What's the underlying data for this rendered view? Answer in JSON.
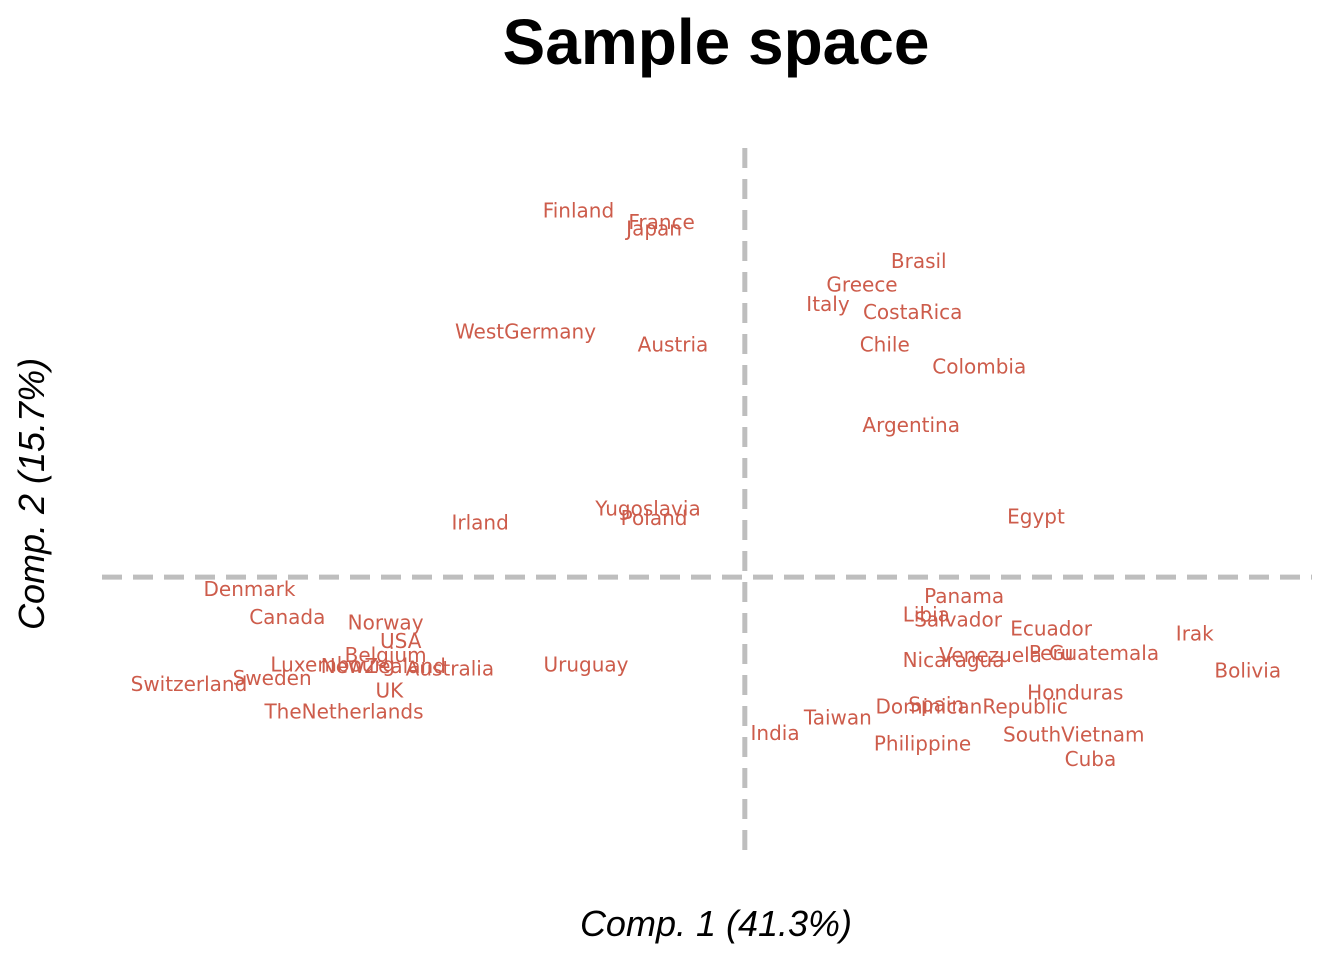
{
  "chart_data": {
    "type": "scatter",
    "title": "Sample space",
    "xlabel": "Comp. 1 (41.3%)",
    "ylabel": "Comp. 2 (15.7%)",
    "xlim": [
      -0.85,
      0.75
    ],
    "ylim": [
      -0.36,
      0.55
    ],
    "grid": false,
    "reference_lines": {
      "x": 0,
      "y": 0
    },
    "label_color": "#CD5C4B",
    "points": [
      {
        "label": "Finland",
        "x": -0.22,
        "y": 0.47
      },
      {
        "label": "France",
        "x": -0.11,
        "y": 0.455
      },
      {
        "label": "Japan",
        "x": -0.12,
        "y": 0.447
      },
      {
        "label": "Brasil",
        "x": 0.23,
        "y": 0.405
      },
      {
        "label": "Greece",
        "x": 0.155,
        "y": 0.375
      },
      {
        "label": "Italy",
        "x": 0.11,
        "y": 0.35
      },
      {
        "label": "CostaRica",
        "x": 0.222,
        "y": 0.34
      },
      {
        "label": "WestGermany",
        "x": -0.29,
        "y": 0.315
      },
      {
        "label": "Austria",
        "x": -0.095,
        "y": 0.298
      },
      {
        "label": "Chile",
        "x": 0.185,
        "y": 0.298
      },
      {
        "label": "Colombia",
        "x": 0.31,
        "y": 0.27
      },
      {
        "label": "Argentina",
        "x": 0.22,
        "y": 0.195
      },
      {
        "label": "Yugoslavia",
        "x": -0.128,
        "y": 0.088
      },
      {
        "label": "Poland",
        "x": -0.12,
        "y": 0.076
      },
      {
        "label": "Irland",
        "x": -0.35,
        "y": 0.07
      },
      {
        "label": "Egypt",
        "x": 0.385,
        "y": 0.078
      },
      {
        "label": "Denmark",
        "x": -0.655,
        "y": -0.015
      },
      {
        "label": "Panama",
        "x": 0.29,
        "y": -0.024
      },
      {
        "label": "Libia",
        "x": 0.24,
        "y": -0.048
      },
      {
        "label": "Salvador",
        "x": 0.282,
        "y": -0.054
      },
      {
        "label": "Canada",
        "x": -0.605,
        "y": -0.051
      },
      {
        "label": "Norway",
        "x": -0.475,
        "y": -0.058
      },
      {
        "label": "Ecuador",
        "x": 0.405,
        "y": -0.066
      },
      {
        "label": "Irak",
        "x": 0.595,
        "y": -0.072
      },
      {
        "label": "USA",
        "x": -0.455,
        "y": -0.082
      },
      {
        "label": "Venezuela",
        "x": 0.325,
        "y": -0.1
      },
      {
        "label": "Peru",
        "x": 0.405,
        "y": -0.097
      },
      {
        "label": "Guatemala",
        "x": 0.475,
        "y": -0.097
      },
      {
        "label": "Belgium",
        "x": -0.475,
        "y": -0.1
      },
      {
        "label": "Nicaragua",
        "x": 0.276,
        "y": -0.106
      },
      {
        "label": "Luxembourg",
        "x": -0.545,
        "y": -0.112
      },
      {
        "label": "NewZealand",
        "x": -0.478,
        "y": -0.114
      },
      {
        "label": "Australia",
        "x": -0.39,
        "y": -0.117
      },
      {
        "label": "Uruguay",
        "x": -0.21,
        "y": -0.112
      },
      {
        "label": "Bolivia",
        "x": 0.665,
        "y": -0.12
      },
      {
        "label": "Switzerland",
        "x": -0.735,
        "y": -0.137
      },
      {
        "label": "Sweden",
        "x": -0.625,
        "y": -0.129
      },
      {
        "label": "UK",
        "x": -0.47,
        "y": -0.145
      },
      {
        "label": "Honduras",
        "x": 0.437,
        "y": -0.148
      },
      {
        "label": "Spain",
        "x": 0.253,
        "y": -0.163
      },
      {
        "label": "DominicanRepublic",
        "x": 0.3,
        "y": -0.166
      },
      {
        "label": "TheNetherlands",
        "x": -0.53,
        "y": -0.172
      },
      {
        "label": "Taiwan",
        "x": 0.123,
        "y": -0.18
      },
      {
        "label": "India",
        "x": 0.04,
        "y": -0.2
      },
      {
        "label": "SouthVietnam",
        "x": 0.435,
        "y": -0.202
      },
      {
        "label": "Philippine",
        "x": 0.235,
        "y": -0.213
      },
      {
        "label": "Cuba",
        "x": 0.457,
        "y": -0.233
      }
    ]
  }
}
